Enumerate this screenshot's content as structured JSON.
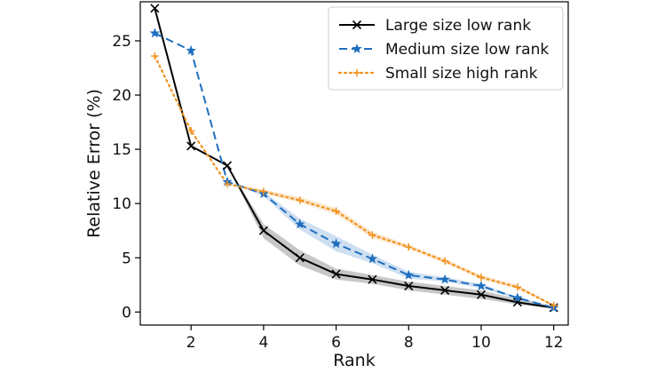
{
  "chart_data": {
    "type": "line",
    "title": "",
    "xlabel": "Rank",
    "ylabel": "Relative Error (%)",
    "xlim": [
      0.6,
      12.4
    ],
    "ylim": [
      -1.2,
      28.6
    ],
    "x_ticks": [
      2,
      4,
      6,
      8,
      10,
      12
    ],
    "y_ticks": [
      0,
      5,
      10,
      15,
      20,
      25
    ],
    "grid": false,
    "legend_position": "top-right",
    "x": [
      1,
      2,
      3,
      4,
      5,
      6,
      7,
      8,
      9,
      10,
      11,
      12
    ],
    "series": [
      {
        "name": "Large size low rank",
        "color": "#000000",
        "line_style": "solid",
        "marker": "x",
        "values": [
          28.0,
          15.3,
          13.5,
          7.5,
          5.0,
          3.5,
          3.0,
          2.4,
          2.0,
          1.6,
          0.9,
          0.4
        ],
        "band_lower": [
          28.0,
          15.3,
          13.5,
          6.8,
          4.3,
          3.0,
          2.6,
          2.0,
          1.6,
          1.2,
          0.7,
          0.3
        ],
        "band_upper": [
          28.0,
          15.3,
          13.5,
          8.1,
          5.7,
          4.0,
          3.4,
          2.8,
          2.4,
          2.0,
          1.2,
          0.5
        ]
      },
      {
        "name": "Medium size low rank",
        "color": "#1f6fbf",
        "line_style": "dashed",
        "marker": "star",
        "values": [
          25.7,
          24.1,
          12.0,
          10.9,
          8.1,
          6.3,
          4.9,
          3.4,
          3.0,
          2.4,
          1.3,
          0.4
        ],
        "band_lower": [
          25.7,
          24.1,
          12.0,
          10.7,
          7.6,
          5.6,
          4.5,
          3.1,
          2.8,
          2.2,
          1.2,
          0.3
        ],
        "band_upper": [
          25.7,
          24.1,
          12.0,
          11.1,
          8.6,
          7.0,
          5.3,
          3.7,
          3.2,
          2.6,
          1.4,
          0.5
        ]
      },
      {
        "name": "Small size high rank",
        "color": "#f0921e",
        "line_style": "dotted",
        "marker": "plus",
        "values": [
          23.6,
          16.7,
          11.8,
          11.1,
          10.3,
          9.3,
          7.1,
          6.0,
          4.7,
          3.2,
          2.3,
          0.6
        ],
        "band_lower": [
          23.6,
          16.7,
          11.8,
          10.9,
          10.1,
          9.0,
          6.8,
          5.8,
          4.5,
          3.0,
          2.1,
          0.5
        ],
        "band_upper": [
          23.6,
          16.7,
          11.8,
          11.3,
          10.6,
          9.6,
          7.4,
          6.2,
          4.9,
          3.4,
          2.5,
          0.7
        ]
      }
    ]
  }
}
